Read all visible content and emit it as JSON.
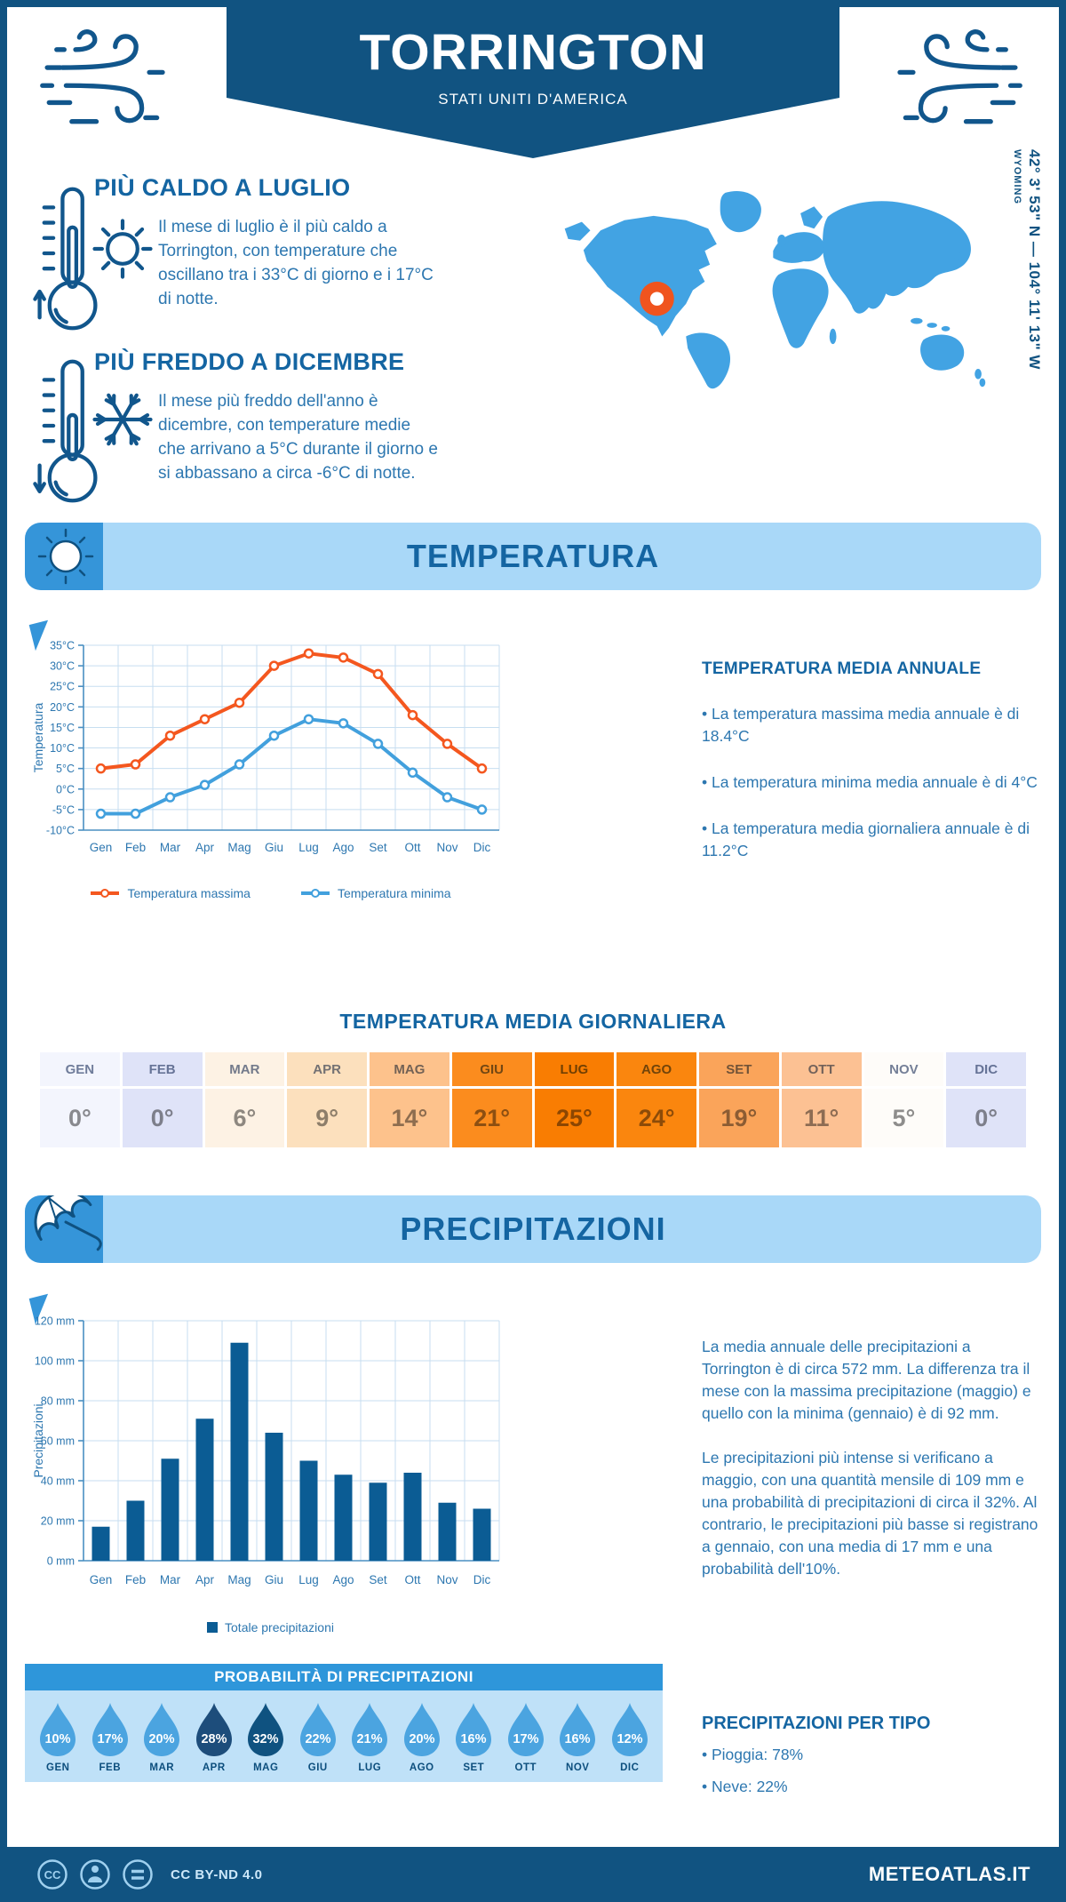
{
  "header": {
    "title": "TORRINGTON",
    "subtitle": "STATI UNITI D'AMERICA"
  },
  "icons": {
    "header_left": "wind-icon",
    "header_right": "wind-icon",
    "warm": [
      "thermometer-up-icon",
      "sun-icon"
    ],
    "cold": [
      "thermometer-down-icon",
      "snowflake-icon"
    ],
    "temperature_banner": "sun-doodle-icon",
    "precipitation_banner": "umbrella-icon",
    "footer": [
      "cc-icon",
      "person-icon",
      "equals-icon"
    ]
  },
  "highlights": [
    {
      "title": "PIÙ CALDO A LUGLIO",
      "text": "Il mese di luglio è il più caldo a Torrington, con temperature che oscillano tra i 33°C di giorno e i 17°C di notte."
    },
    {
      "title": "PIÙ FREDDO A DICEMBRE",
      "text": "Il mese più freddo dell'anno è dicembre, con temperature medie che arrivano a 5°C durante il giorno e si abbassano a circa -6°C di notte."
    }
  ],
  "map": {
    "region": "WYOMING",
    "coordinates": "42° 3' 53\" N — 104° 11' 13\" W",
    "map_color": "#42a3e3",
    "marker_color": "#f0541e"
  },
  "section_titles": {
    "temperature": "TEMPERATURA",
    "precipitation": "PRECIPITAZIONI"
  },
  "annual": {
    "title": "TEMPERATURA MEDIA ANNUALE",
    "bullets": [
      "• La temperatura massima media annuale è di 18.4°C",
      "• La temperatura minima media annuale è di 4°C",
      "• La temperatura media giornaliera annuale è di 11.2°C"
    ]
  },
  "daily_table": {
    "title": "TEMPERATURA MEDIA GIORNALIERA",
    "months": [
      "GEN",
      "FEB",
      "MAR",
      "APR",
      "MAG",
      "GIU",
      "LUG",
      "AGO",
      "SET",
      "OTT",
      "NOV",
      "DIC"
    ],
    "values": [
      "0°",
      "0°",
      "6°",
      "9°",
      "14°",
      "21°",
      "25°",
      "24°",
      "19°",
      "11°",
      "5°",
      "0°"
    ],
    "cell_colors": [
      "#f3f5fd",
      "#dfe3f8",
      "#fdf2e4",
      "#fce0bd",
      "#fdc28c",
      "#fb8c1e",
      "#f97d02",
      "#fa860e",
      "#faa45a",
      "#fcc193",
      "#fefcf9",
      "#dfe3f8"
    ]
  },
  "precipitation_text": {
    "paragraphs": [
      "La media annuale delle precipitazioni a Torrington è di circa 572 mm. La differenza tra il mese con la massima precipitazione (maggio) e quello con la minima (gennaio) è di 92 mm.",
      "Le precipitazioni più intense si verificano a maggio, con una quantità mensile di 109 mm e una probabilità di precipitazioni di circa il 32%. Al contrario, le precipitazioni più basse si registrano a gennaio, con una media di 17 mm e una probabilità dell'10%."
    ]
  },
  "probability": {
    "title": "PROBABILITÀ DI PRECIPITAZIONI",
    "months": [
      "GEN",
      "FEB",
      "MAR",
      "APR",
      "MAG",
      "GIU",
      "LUG",
      "AGO",
      "SET",
      "OTT",
      "NOV",
      "DIC"
    ],
    "values": [
      "10%",
      "17%",
      "20%",
      "28%",
      "32%",
      "22%",
      "21%",
      "20%",
      "16%",
      "17%",
      "16%",
      "12%"
    ],
    "droplet_colors": [
      "#4ba4e0",
      "#4ba4e0",
      "#4ba4e0",
      "#1d4d7b",
      "#0f5280",
      "#4ba4e0",
      "#4ba4e0",
      "#4ba4e0",
      "#4ba4e0",
      "#4ba4e0",
      "#4ba4e0",
      "#4ba4e0"
    ]
  },
  "per_tipo": {
    "title": "PRECIPITAZIONI PER TIPO",
    "bullets": [
      "• Pioggia: 78%",
      "• Neve: 22%"
    ]
  },
  "footer": {
    "license": "CC BY-ND 4.0",
    "site": "METEOATLAS.IT"
  },
  "chart_data": [
    {
      "type": "line",
      "title": "Temperatura",
      "categories": [
        "Gen",
        "Feb",
        "Mar",
        "Apr",
        "Mag",
        "Giu",
        "Lug",
        "Ago",
        "Set",
        "Ott",
        "Nov",
        "Dic"
      ],
      "series": [
        {
          "name": "Temperatura massima",
          "color": "#f4571f",
          "values": [
            5,
            6,
            13,
            17,
            21,
            30,
            33,
            32,
            28,
            18,
            11,
            5
          ]
        },
        {
          "name": "Temperatura minima",
          "color": "#42a0dd",
          "values": [
            -6,
            -6,
            -2,
            1,
            6,
            13,
            17,
            16,
            11,
            4,
            -2,
            -5
          ]
        }
      ],
      "ylabel": "Temperatura",
      "ylim": [
        -10,
        35
      ],
      "ytick_step": 5,
      "ytick_suffix": "°C",
      "grid": true,
      "legend_position": "bottom"
    },
    {
      "type": "bar",
      "title": "Precipitazioni",
      "categories": [
        "Gen",
        "Feb",
        "Mar",
        "Apr",
        "Mag",
        "Giu",
        "Lug",
        "Ago",
        "Set",
        "Ott",
        "Nov",
        "Dic"
      ],
      "series": [
        {
          "name": "Totale precipitazioni",
          "color": "#0b5c94",
          "values": [
            17,
            30,
            51,
            71,
            109,
            64,
            50,
            43,
            39,
            44,
            29,
            26
          ]
        }
      ],
      "ylabel": "Precipitazioni",
      "ylim": [
        0,
        120
      ],
      "ytick_step": 20,
      "ytick_suffix": " mm",
      "grid": true,
      "legend_position": "bottom"
    }
  ]
}
